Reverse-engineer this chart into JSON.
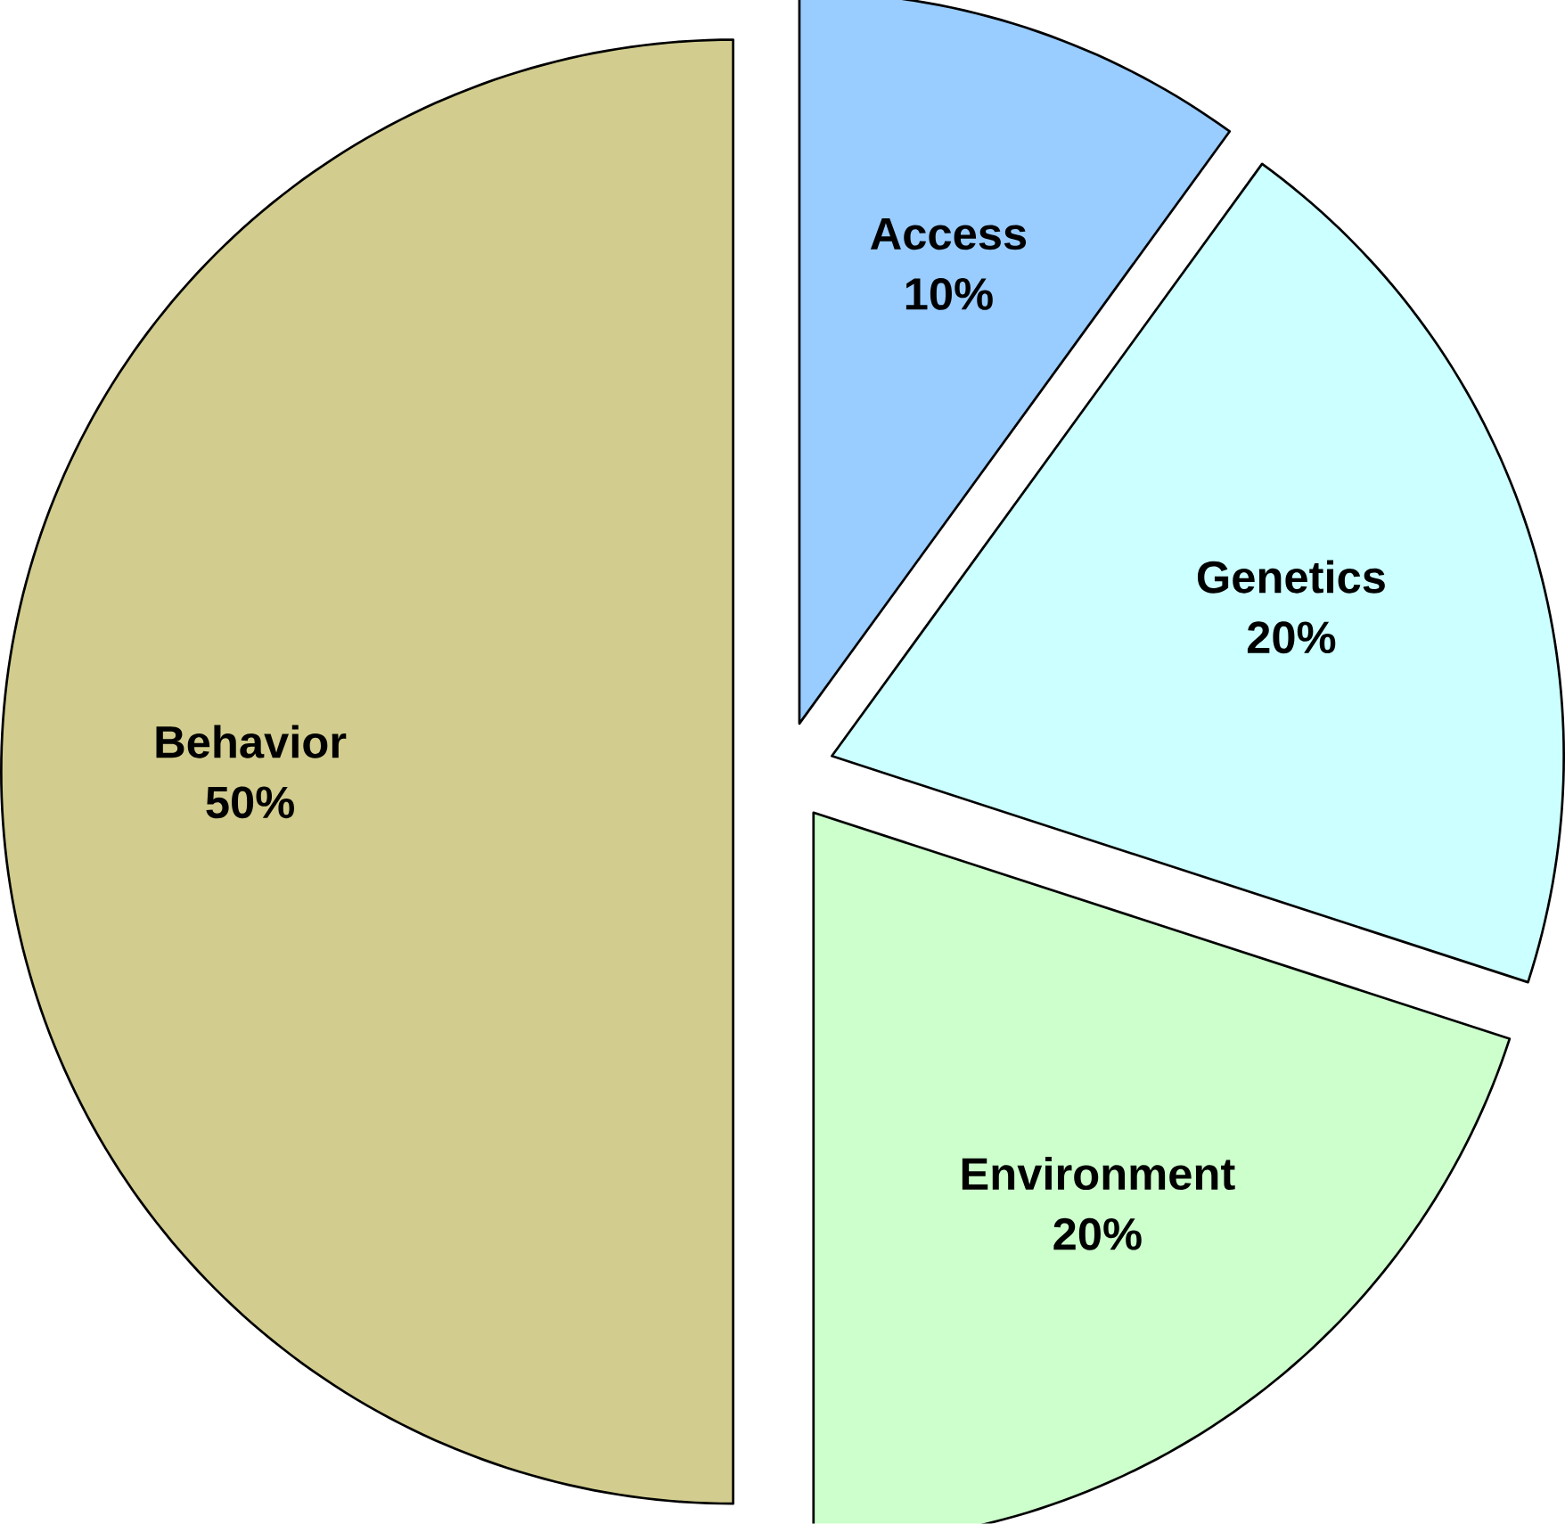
{
  "chart_data": {
    "type": "pie",
    "categories": [
      "Access",
      "Genetics",
      "Environment",
      "Behavior"
    ],
    "values": [
      10,
      20,
      20,
      50
    ],
    "colors": [
      "#99ccff",
      "#ccffff",
      "#ccffcc",
      "#d2cd8e"
    ],
    "value_labels": [
      "10%",
      "20%",
      "20%",
      "50%"
    ]
  }
}
